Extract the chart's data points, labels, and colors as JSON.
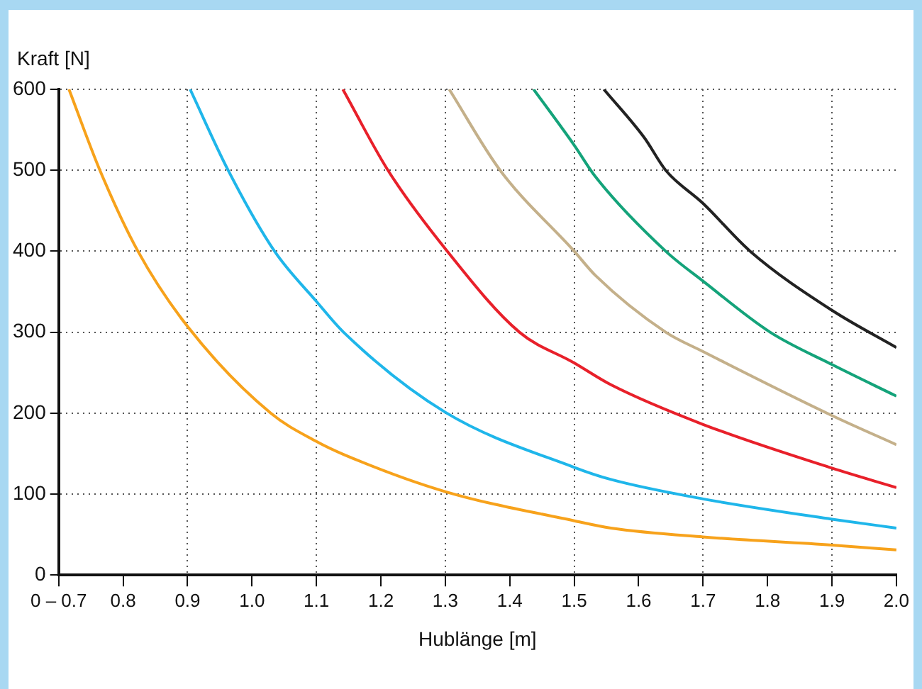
{
  "chart_data": {
    "type": "line",
    "xlabel": "Hublänge [m]",
    "ylabel": "Kraft [N]",
    "xlim": [
      0.7,
      2.0
    ],
    "ylim": [
      0,
      600
    ],
    "xticks": [
      {
        "value": 0.7,
        "label": "0 – 0.7"
      },
      0.8,
      0.9,
      {
        "value": 1.0,
        "label": "1.0"
      },
      1.1,
      1.2,
      1.3,
      1.4,
      1.5,
      1.6,
      1.7,
      1.8,
      1.9,
      {
        "value": 2.0,
        "label": "2.0"
      }
    ],
    "yticks": [
      0,
      100,
      200,
      300,
      400,
      500,
      600
    ],
    "grid": true,
    "marker": "none",
    "line_style": "solid",
    "series": [
      {
        "color": "#f7a21b",
        "x": [
          0.716,
          0.764,
          0.823,
          0.9,
          1.029,
          1.1,
          1.142,
          1.3,
          1.5,
          1.557,
          1.7,
          1.9,
          2.0
        ],
        "values": [
          600,
          500,
          400,
          307,
          200,
          165,
          149,
          103,
          67,
          58,
          47,
          37,
          31
        ]
      },
      {
        "color": "#1fb6ea",
        "x": [
          0.904,
          0.963,
          1.035,
          1.1,
          1.142,
          1.3,
          1.5,
          1.557,
          1.7,
          1.9,
          2.0
        ],
        "values": [
          600,
          500,
          400,
          338,
          300,
          201,
          133,
          118,
          94,
          69,
          58
        ]
      },
      {
        "color": "#e8202a",
        "x": [
          1.141,
          1.211,
          1.3,
          1.415,
          1.5,
          1.557,
          1.7,
          1.9,
          2.0
        ],
        "values": [
          600,
          500,
          403,
          300,
          262,
          235,
          186,
          132,
          108
        ]
      },
      {
        "color": "#c4b08a",
        "x": [
          1.306,
          1.385,
          1.5,
          1.533,
          1.642,
          1.7,
          1.9,
          2.0
        ],
        "values": [
          600,
          500,
          400,
          370,
          300,
          276,
          197,
          161
        ]
      },
      {
        "color": "#14a37a",
        "x": [
          1.437,
          1.5,
          1.533,
          1.642,
          1.7,
          1.804,
          1.9,
          2.0
        ],
        "values": [
          600,
          531,
          492,
          400,
          363,
          300,
          260,
          221
        ]
      },
      {
        "color": "#222222",
        "x": [
          1.546,
          1.609,
          1.642,
          1.7,
          1.773,
          1.9,
          2.0
        ],
        "values": [
          600,
          540,
          500,
          459,
          400,
          327,
          281
        ]
      }
    ]
  }
}
